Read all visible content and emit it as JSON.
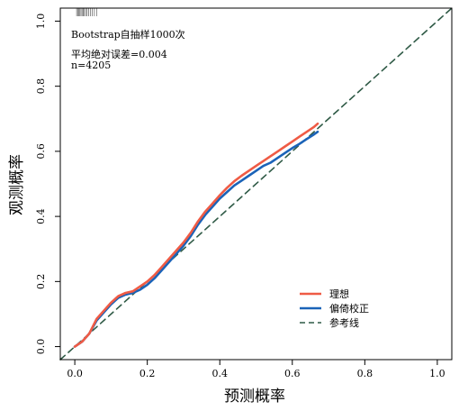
{
  "chart_data": {
    "type": "line",
    "xlabel": "预测概率",
    "ylabel": "观测概率",
    "xlim": [
      -0.04,
      1.04
    ],
    "ylim": [
      -0.04,
      1.04
    ],
    "x_ticks": [
      "0.0",
      "0.2",
      "0.4",
      "0.6",
      "0.8",
      "1.0"
    ],
    "y_ticks": [
      "0.0",
      "0.2",
      "0.4",
      "0.6",
      "0.8",
      "1.0"
    ],
    "grid": false,
    "legend_position": "bottom-right",
    "annotations": [
      "Bootstrap自抽样1000次",
      "平均绝对误差=0.004",
      "n=4205"
    ],
    "rug_ticks_x": [
      0.005,
      0.008,
      0.011,
      0.014,
      0.017,
      0.02,
      0.023,
      0.026,
      0.03,
      0.034,
      0.038,
      0.043,
      0.048,
      0.054,
      0.06
    ],
    "series": [
      {
        "name": "理想",
        "color": "#ef5b45",
        "dash": "solid",
        "x": [
          0.0,
          0.02,
          0.04,
          0.06,
          0.08,
          0.1,
          0.12,
          0.14,
          0.16,
          0.18,
          0.2,
          0.22,
          0.24,
          0.26,
          0.28,
          0.3,
          0.32,
          0.34,
          0.36,
          0.38,
          0.4,
          0.42,
          0.44,
          0.46,
          0.48,
          0.5,
          0.52,
          0.54,
          0.56,
          0.58,
          0.6,
          0.62,
          0.64,
          0.66,
          0.67
        ],
        "y": [
          0.0,
          0.015,
          0.04,
          0.085,
          0.11,
          0.135,
          0.155,
          0.165,
          0.17,
          0.185,
          0.2,
          0.22,
          0.245,
          0.27,
          0.295,
          0.32,
          0.35,
          0.385,
          0.415,
          0.44,
          0.465,
          0.488,
          0.508,
          0.525,
          0.54,
          0.555,
          0.57,
          0.585,
          0.6,
          0.615,
          0.63,
          0.645,
          0.66,
          0.675,
          0.685
        ]
      },
      {
        "name": "偏倚校正",
        "color": "#1b63b8",
        "dash": "solid",
        "x": [
          0.0,
          0.02,
          0.04,
          0.06,
          0.08,
          0.1,
          0.12,
          0.14,
          0.16,
          0.18,
          0.2,
          0.22,
          0.24,
          0.26,
          0.28,
          0.3,
          0.32,
          0.34,
          0.36,
          0.38,
          0.4,
          0.42,
          0.44,
          0.46,
          0.48,
          0.5,
          0.52,
          0.54,
          0.56,
          0.58,
          0.6,
          0.62,
          0.64,
          0.66,
          0.67
        ],
        "y": [
          0.0,
          0.015,
          0.04,
          0.08,
          0.105,
          0.13,
          0.15,
          0.16,
          0.165,
          0.175,
          0.19,
          0.21,
          0.235,
          0.26,
          0.285,
          0.31,
          0.34,
          0.375,
          0.405,
          0.43,
          0.455,
          0.475,
          0.495,
          0.51,
          0.525,
          0.54,
          0.555,
          0.565,
          0.58,
          0.595,
          0.61,
          0.623,
          0.638,
          0.652,
          0.66
        ]
      },
      {
        "name": "参考线",
        "color": "#2f5a46",
        "dash": "dashed",
        "x": [
          -0.04,
          1.04
        ],
        "y": [
          -0.04,
          1.04
        ]
      }
    ]
  }
}
